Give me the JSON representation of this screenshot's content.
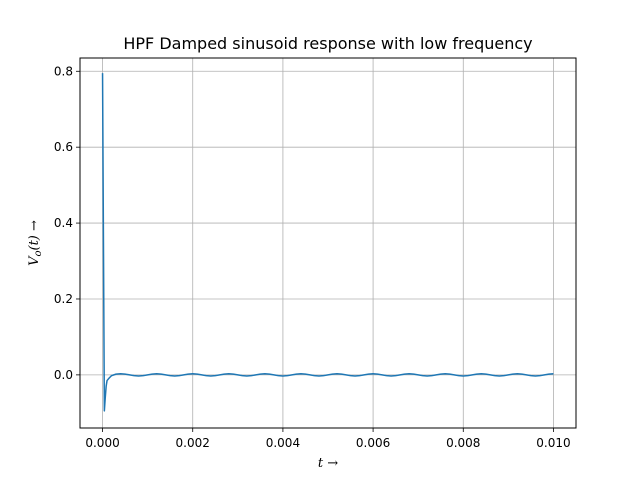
{
  "chart_data": {
    "type": "line",
    "title": "HPF Damped sinusoid response with low frequency",
    "xlabel": "t →",
    "ylabel": "Vo(t) →",
    "ylabel_parts": {
      "main": "V",
      "sub": "o",
      "rest": "(t) →"
    },
    "xlim": [
      -0.0005,
      0.0105
    ],
    "ylim": [
      -0.14,
      0.835
    ],
    "xticks": [
      0.0,
      0.002,
      0.004,
      0.006,
      0.008,
      0.01
    ],
    "xtick_labels": [
      "0.000",
      "0.002",
      "0.004",
      "0.006",
      "0.008",
      "0.010"
    ],
    "yticks": [
      0.0,
      0.2,
      0.4,
      0.6,
      0.8
    ],
    "ytick_labels": [
      "0.0",
      "0.2",
      "0.4",
      "0.6",
      "0.8"
    ],
    "grid": true,
    "series": [
      {
        "color": "#1f77b4",
        "x": [
          0,
          2e-05,
          4e-05,
          6e-05,
          8e-05,
          0.0001,
          0.00015,
          0.0002,
          0.00025,
          0.0003,
          0.0004,
          0.0005,
          0.0006,
          0.0007,
          0.0008,
          0.0009,
          0.001,
          0.0011,
          0.0012,
          0.0013,
          0.0014,
          0.0015,
          0.0016,
          0.0017,
          0.0018,
          0.0019,
          0.002,
          0.0021,
          0.0022,
          0.0023,
          0.0024,
          0.0025,
          0.0026,
          0.0027,
          0.0028,
          0.0029,
          0.003,
          0.0031,
          0.0032,
          0.0033,
          0.0034,
          0.0035,
          0.0036,
          0.0037,
          0.0038,
          0.0039,
          0.004,
          0.0041,
          0.0042,
          0.0043,
          0.0044,
          0.0045,
          0.0046,
          0.0047,
          0.0048,
          0.0049,
          0.005,
          0.0051,
          0.0052,
          0.0053,
          0.0054,
          0.0055,
          0.0056,
          0.0057,
          0.0058,
          0.0059,
          0.006,
          0.0061,
          0.0062,
          0.0063,
          0.0064,
          0.0065,
          0.0066,
          0.0067,
          0.0068,
          0.0069,
          0.007,
          0.0071,
          0.0072,
          0.0073,
          0.0074,
          0.0075,
          0.0076,
          0.0077,
          0.0078,
          0.0079,
          0.008,
          0.0081,
          0.0082,
          0.0083,
          0.0084,
          0.0085,
          0.0086,
          0.0087,
          0.0088,
          0.0089,
          0.009,
          0.0091,
          0.0092,
          0.0093,
          0.0094,
          0.0095,
          0.0096,
          0.0097,
          0.0098,
          0.0099,
          0.01
        ],
        "y": [
          0.795,
          0.35,
          -0.095,
          -0.06,
          -0.03,
          -0.015,
          -0.008,
          -0.002,
          0.0,
          0.002,
          0.003,
          0.002,
          0.0,
          -0.002,
          -0.003,
          -0.002,
          0.0,
          0.002,
          0.003,
          0.002,
          0.0,
          -0.002,
          -0.003,
          -0.002,
          0.0,
          0.002,
          0.003,
          0.002,
          0.0,
          -0.002,
          -0.003,
          -0.002,
          0.0,
          0.002,
          0.003,
          0.002,
          0.0,
          -0.002,
          -0.003,
          -0.002,
          0.0,
          0.002,
          0.003,
          0.002,
          0.0,
          -0.002,
          -0.003,
          -0.002,
          0.0,
          0.002,
          0.003,
          0.002,
          0.0,
          -0.002,
          -0.003,
          -0.002,
          0.0,
          0.002,
          0.003,
          0.002,
          0.0,
          -0.002,
          -0.003,
          -0.002,
          0.0,
          0.002,
          0.003,
          0.002,
          0.0,
          -0.002,
          -0.003,
          -0.002,
          0.0,
          0.002,
          0.003,
          0.002,
          0.0,
          -0.002,
          -0.003,
          -0.002,
          0.0,
          0.002,
          0.003,
          0.002,
          0.0,
          -0.002,
          -0.003,
          -0.002,
          0.0,
          0.002,
          0.003,
          0.002,
          0.0,
          -0.002,
          -0.003,
          -0.002,
          0.0,
          0.002,
          0.003,
          0.002,
          0.0,
          -0.002,
          -0.003,
          -0.002,
          0.0,
          0.002,
          0.003
        ]
      }
    ]
  }
}
